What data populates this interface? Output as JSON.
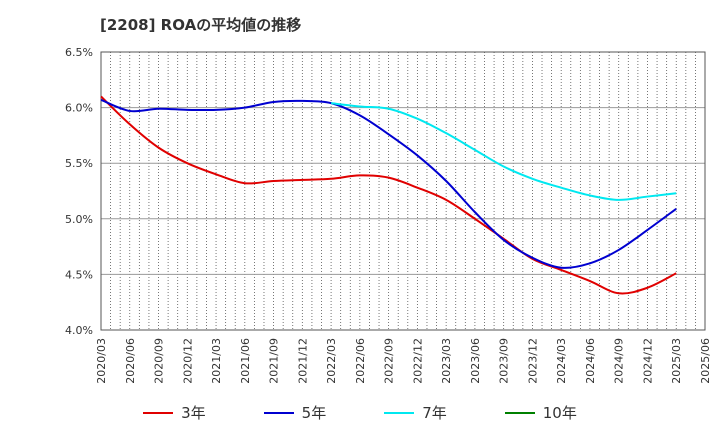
{
  "chart_data": {
    "type": "line",
    "title": "[2208]  ROAの平均値の推移",
    "xlabel": "",
    "ylabel": "",
    "ylim": [
      4.0,
      6.5
    ],
    "y_ticks": [
      "4.0%",
      "4.5%",
      "5.0%",
      "5.5%",
      "6.0%",
      "6.5%"
    ],
    "x_ticks": [
      "2020/03",
      "2020/06",
      "2020/09",
      "2020/12",
      "2021/03",
      "2021/06",
      "2021/09",
      "2021/12",
      "2022/03",
      "2022/06",
      "2022/09",
      "2022/12",
      "2023/03",
      "2023/06",
      "2023/09",
      "2023/12",
      "2024/03",
      "2024/06",
      "2024/09",
      "2024/12",
      "2025/03",
      "2025/06"
    ],
    "grid": true,
    "legend_position": "bottom",
    "series": [
      {
        "name": "3年",
        "color": "#e00000",
        "start_index": 0,
        "values": [
          6.1,
          5.85,
          5.64,
          5.5,
          5.4,
          5.32,
          5.34,
          5.35,
          5.36,
          5.39,
          5.37,
          5.28,
          5.17,
          5.0,
          4.82,
          4.64,
          4.54,
          4.44,
          4.33,
          4.38,
          4.51
        ]
      },
      {
        "name": "5年",
        "color": "#0000d0",
        "start_index": 0,
        "values": [
          6.07,
          5.97,
          5.99,
          5.98,
          5.98,
          6.0,
          6.05,
          6.06,
          6.04,
          5.93,
          5.76,
          5.57,
          5.34,
          5.06,
          4.81,
          4.65,
          4.56,
          4.6,
          4.72,
          4.9,
          5.09
        ]
      },
      {
        "name": "7年",
        "color": "#00e8f0",
        "start_index": 8,
        "values": [
          6.04,
          6.01,
          5.99,
          5.9,
          5.77,
          5.62,
          5.47,
          5.36,
          5.28,
          5.21,
          5.17,
          5.2,
          5.23
        ]
      },
      {
        "name": "10年",
        "color": "#008000",
        "start_index": 0,
        "values": []
      }
    ]
  }
}
